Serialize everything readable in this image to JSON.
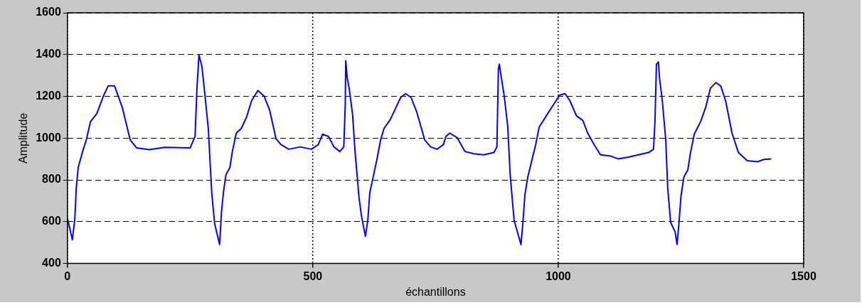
{
  "chart_data": {
    "type": "line",
    "xlabel": "échantillons",
    "ylabel": "Amplitude",
    "xlim": [
      0,
      1500
    ],
    "ylim": [
      400,
      1600
    ],
    "xticks": [
      0,
      500,
      1000,
      1500
    ],
    "yticks": [
      400,
      600,
      800,
      1000,
      1200,
      1400,
      1600
    ],
    "grid": true,
    "legend": false,
    "marker": "none",
    "line_style": "solid",
    "series": [
      {
        "color": "#0000ff",
        "x": [
          0,
          10,
          15,
          18,
          22,
          31,
          39,
          47,
          60,
          73,
          83,
          96,
          112,
          128,
          141,
          167,
          198,
          250,
          260,
          264,
          268,
          274,
          279,
          287,
          291,
          294,
          300,
          310,
          314,
          318,
          323,
          331,
          336,
          344,
          354,
          365,
          375,
          388,
          401,
          412,
          425,
          435,
          451,
          474,
          497,
          511,
          520,
          532,
          543,
          555,
          563,
          566,
          567,
          570,
          574,
          581,
          586,
          594,
          599,
          607,
          612,
          616,
          622,
          630,
          638,
          645,
          658,
          669,
          679,
          689,
          700,
          712,
          728,
          740,
          753,
          766,
          771,
          779,
          794,
          810,
          828,
          848,
          869,
          875,
          878,
          880,
          883,
          890,
          897,
          902,
          910,
          918,
          924,
          928,
          932,
          938,
          946,
          954,
          961,
          977,
          992,
          1003,
          1014,
          1024,
          1037,
          1050,
          1060,
          1073,
          1086,
          1107,
          1122,
          1143,
          1163,
          1184,
          1194,
          1197,
          1200,
          1204,
          1206,
          1212,
          1219,
          1223,
          1229,
          1238,
          1242,
          1246,
          1250,
          1256,
          1264,
          1269,
          1277,
          1290,
          1300,
          1310,
          1321,
          1331,
          1341,
          1354,
          1367,
          1385,
          1406,
          1419,
          1434
        ],
        "values": [
          617,
          513,
          612,
          760,
          860,
          936,
          997,
          1079,
          1118,
          1200,
          1250,
          1250,
          1145,
          991,
          953,
          945,
          956,
          953,
          1008,
          1244,
          1398,
          1343,
          1233,
          1046,
          870,
          738,
          590,
          491,
          651,
          744,
          826,
          859,
          936,
          1024,
          1046,
          1101,
          1178,
          1228,
          1200,
          1134,
          997,
          969,
          947,
          958,
          947,
          969,
          1019,
          1008,
          958,
          936,
          958,
          1156,
          1370,
          1288,
          1239,
          1112,
          936,
          717,
          629,
          530,
          607,
          739,
          804,
          892,
          991,
          1046,
          1090,
          1145,
          1195,
          1213,
          1195,
          1123,
          991,
          958,
          947,
          969,
          1008,
          1024,
          1002,
          936,
          925,
          920,
          931,
          958,
          1332,
          1354,
          1305,
          1200,
          1057,
          826,
          607,
          541,
          491,
          596,
          728,
          815,
          892,
          969,
          1052,
          1112,
          1167,
          1206,
          1213,
          1178,
          1107,
          1085,
          1024,
          969,
          920,
          914,
          901,
          909,
          920,
          931,
          947,
          1079,
          1354,
          1365,
          1294,
          1178,
          991,
          760,
          596,
          552,
          491,
          596,
          722,
          815,
          848,
          925,
          1019,
          1079,
          1145,
          1239,
          1266,
          1250,
          1178,
          1024,
          931,
          892,
          887,
          898,
          901
        ]
      }
    ]
  }
}
